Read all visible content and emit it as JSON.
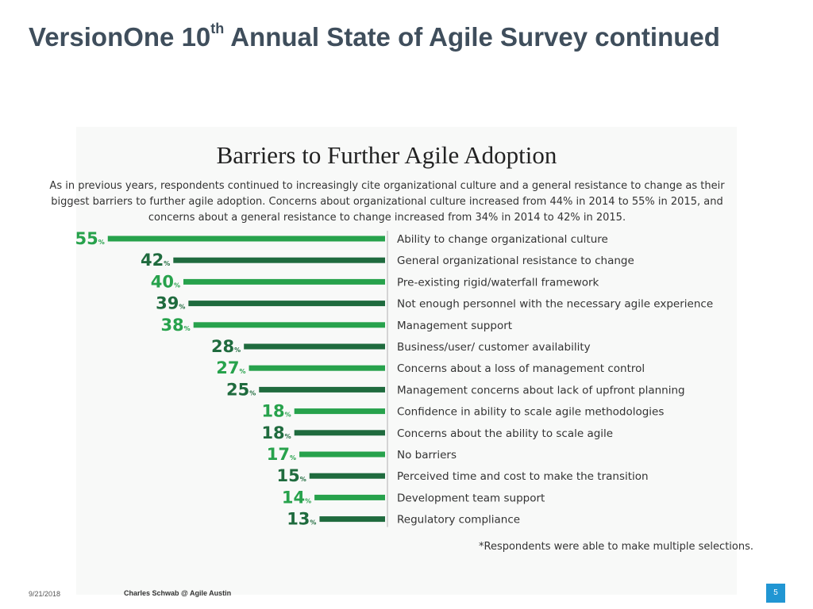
{
  "slide": {
    "title_main": "VersionOne 10",
    "title_sup": "th",
    "title_rest": " Annual State of Agile Survey continued",
    "footer_date": "9/21/2018",
    "footer_text": "Charles Schwab @ Agile Austin",
    "page_number": "5"
  },
  "colors": {
    "light_green": "#27a24c",
    "dark_green": "#1f6b3e",
    "divider": "#c8c8c8"
  },
  "chart_data": {
    "type": "bar",
    "orientation": "horizontal",
    "title": "Barriers to Further Agile Adoption",
    "intro": "As in previous years, respondents continued to increasingly cite organizational culture and a general resistance to change as their biggest barriers to further agile adoption. Concerns about organizational culture increased from 44% in 2014 to 55% in 2015, and concerns about a general resistance to change increased from 34% in 2014 to 42% in 2015.",
    "unit": "%",
    "xlim": [
      0,
      55
    ],
    "footnote": "*Respondents were able to make multiple selections.",
    "categories": [
      "Ability to change organizational culture",
      "General organizational resistance to change",
      "Pre-existing rigid/waterfall framework",
      "Not enough personnel with the necessary agile experience",
      "Management support",
      "Business/user/ customer availability",
      "Concerns about a loss of management control",
      "Management concerns about lack of upfront planning",
      "Confidence in ability to scale agile methodologies",
      "Concerns about the ability to scale agile",
      "No barriers",
      "Perceived time and cost to make the transition",
      "Development team support",
      "Regulatory compliance"
    ],
    "values": [
      55,
      42,
      40,
      39,
      38,
      28,
      27,
      25,
      18,
      18,
      17,
      15,
      14,
      13
    ]
  }
}
